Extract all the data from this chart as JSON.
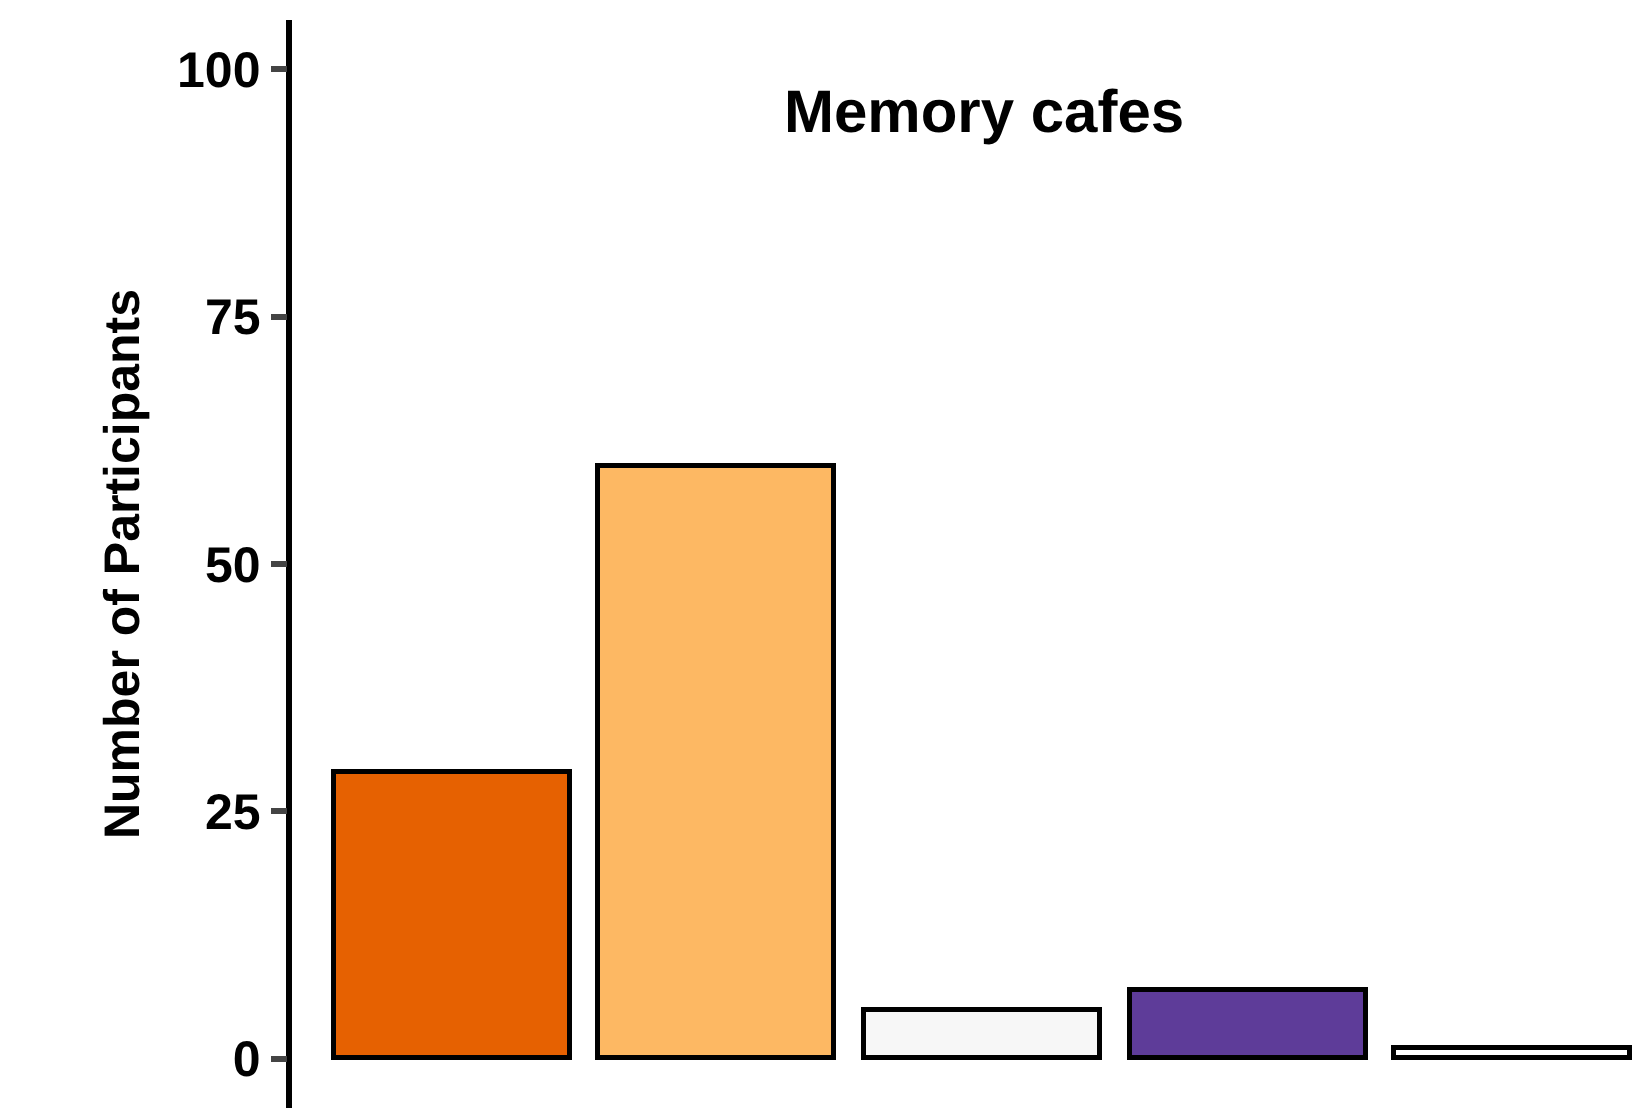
{
  "chart_data": {
    "type": "bar",
    "title": "Memory cafes",
    "ylabel": "Number of Participants",
    "categories": [
      null,
      null,
      null,
      null,
      null
    ],
    "values": [
      29,
      60,
      5,
      7,
      1
    ],
    "colors": [
      "#e66101",
      "#fdb863",
      "#f7f7f7",
      "#5e3c99",
      "#ffffff"
    ],
    "ylim": [
      -5,
      105
    ],
    "yticks": [
      0,
      25,
      50,
      75,
      100
    ]
  }
}
